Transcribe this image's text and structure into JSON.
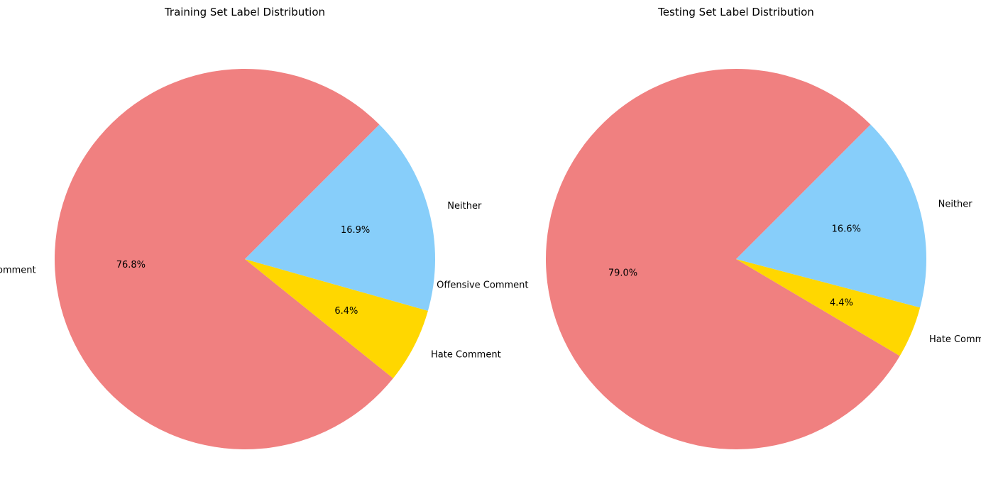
{
  "chart_data": [
    {
      "type": "pie",
      "title": "Training Set Label Distribution",
      "start_angle": 45,
      "direction": "counterclockwise",
      "slices": [
        {
          "label": "Offensive Comment",
          "value": 76.8,
          "pct_text": "76.8%",
          "color": "#F08080"
        },
        {
          "label": "Hate Comment",
          "value": 6.4,
          "pct_text": "6.4%",
          "color": "#FFD700"
        },
        {
          "label": "Neither",
          "value": 16.9,
          "pct_text": "16.9%",
          "color": "#87CEFA"
        }
      ]
    },
    {
      "type": "pie",
      "title": "Testing Set Label Distribution",
      "start_angle": 45,
      "direction": "counterclockwise",
      "slices": [
        {
          "label": "Offensive Comment",
          "value": 79.0,
          "pct_text": "79.0%",
          "color": "#F08080"
        },
        {
          "label": "Hate Comment",
          "value": 4.4,
          "pct_text": "4.4%",
          "color": "#FFD700"
        },
        {
          "label": "Neither",
          "value": 16.6,
          "pct_text": "16.6%",
          "color": "#87CEFA"
        }
      ]
    }
  ]
}
